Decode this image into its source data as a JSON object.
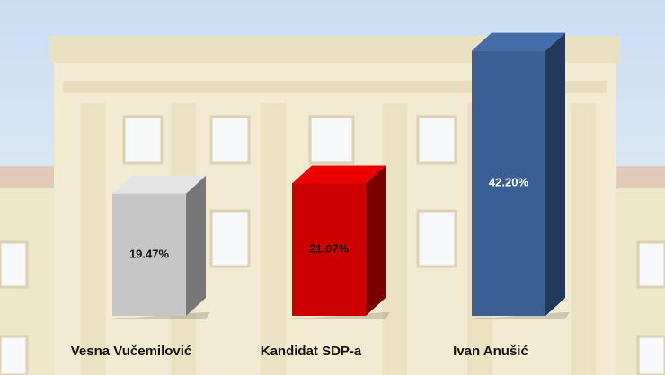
{
  "chart_data": {
    "type": "bar3d",
    "categories": [
      "Vesna Vučemilović",
      "Kandidat SDP-a",
      "Ivan Anušić"
    ],
    "values": [
      19.47,
      21.07,
      42.2
    ],
    "value_labels": [
      "19.47%",
      "21.07%",
      "42.20%"
    ],
    "colors": [
      "#c6c6c6",
      "#cc0000",
      "#3b5f94"
    ]
  }
}
